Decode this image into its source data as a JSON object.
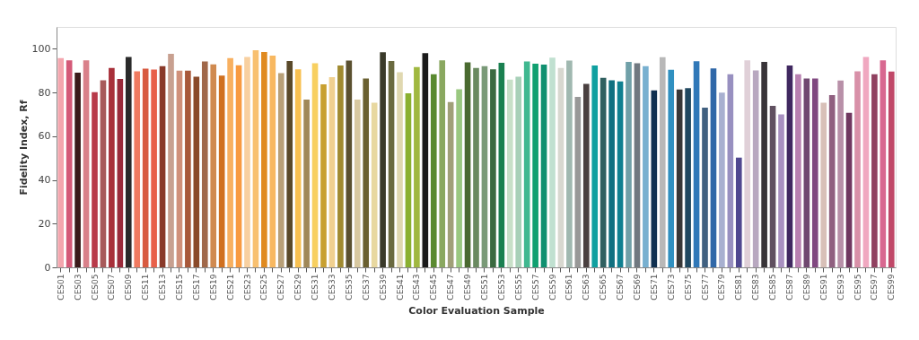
{
  "chart_data": {
    "type": "bar",
    "xlabel": "Color Evaluation Sample",
    "ylabel": "Fidelity Index, Rf",
    "categories": [
      "CES01",
      null,
      "CES03",
      null,
      "CES05",
      null,
      "CES07",
      null,
      "CES09",
      null,
      "CES11",
      null,
      "CES13",
      null,
      "CES15",
      null,
      "CES17",
      null,
      "CES19",
      null,
      "CES21",
      null,
      "CES23",
      null,
      "CES25",
      null,
      "CES27",
      null,
      "CES29",
      null,
      "CES31",
      null,
      "CES33",
      null,
      "CES35",
      null,
      "CES37",
      null,
      "CES39",
      null,
      "CES41",
      null,
      "CES43",
      null,
      "CES45",
      null,
      "CES47",
      null,
      "CES49",
      null,
      "CES51",
      null,
      "CES53",
      null,
      "CES55",
      null,
      "CES57",
      null,
      "CES59",
      null,
      "CES61",
      null,
      "CES63",
      null,
      "CES65",
      null,
      "CES67",
      null,
      "CES69",
      null,
      "CES71",
      null,
      "CES73",
      null,
      "CES75",
      null,
      "CES77",
      null,
      "CES79",
      null,
      "CES81",
      null,
      "CES83",
      null,
      "CES85",
      null,
      "CES87",
      null,
      "CES89",
      null,
      "CES91",
      null,
      "CES93",
      null,
      "CES95",
      null,
      "CES97",
      null,
      "CES99"
    ],
    "values": [
      95.7,
      94.7,
      89.1,
      94.7,
      80.1,
      85.6,
      91.2,
      86.2,
      96.3,
      89.7,
      90.9,
      90.5,
      92,
      97.7,
      90,
      90,
      87.2,
      94.2,
      92.9,
      87.7,
      95.7,
      92.5,
      96.3,
      99.3,
      98.5,
      96.9,
      88.9,
      94.4,
      90.6,
      76.8,
      93.4,
      83.7,
      87,
      92.4,
      94.6,
      76.8,
      86.4,
      75.3,
      98.4,
      94.4,
      89.3,
      79.6,
      91.6,
      98,
      88.3,
      94.7,
      75.6,
      81.5,
      93.8,
      91.2,
      92,
      90.6,
      93.6,
      85.9,
      87.2,
      94.2,
      93.2,
      92.8,
      95.9,
      91.2,
      94.6,
      78,
      83.9,
      92.3,
      86.7,
      85.6,
      85.1,
      94,
      93.4,
      92,
      81,
      96.1,
      90.4,
      81.4,
      82,
      94.3,
      73.1,
      91,
      79.9,
      88.3,
      50.2,
      94.7,
      90.1,
      94,
      73.9,
      70,
      92.3,
      88.3,
      86.4,
      86.4,
      75.3,
      78.8,
      85.5,
      70.7,
      89.7,
      96.3,
      88.3,
      94.7,
      89.6
    ],
    "colors": [
      "#f4a6ae",
      "#d45a78",
      "#3a1a1a",
      "#d9808a",
      "#b83a4a",
      "#a85a5a",
      "#a8303a",
      "#9a2a3a",
      "#2a2a2a",
      "#f07a60",
      "#d85a40",
      "#e8604a",
      "#8a3a2a",
      "#c8a090",
      "#d0907a",
      "#a8583a",
      "#8a4a2a",
      "#a0684a",
      "#d08a50",
      "#d07020",
      "#f8b060",
      "#f89a40",
      "#f8d0a0",
      "#f8c070",
      "#e08a20",
      "#f8b860",
      "#b8a078",
      "#5a4a2a",
      "#f8c050",
      "#a08858",
      "#f8d060",
      "#c8a030",
      "#f0d090",
      "#a08a30",
      "#5a5030",
      "#d8c8a0",
      "#6a6030",
      "#e8d8a0",
      "#3a3a2a",
      "#6a6a40",
      "#e0d8b0",
      "#8ab030",
      "#a0b840",
      "#1a1a1a",
      "#5a8a30",
      "#8aa860",
      "#a0a078",
      "#9ac880",
      "#4a6a30",
      "#6a8a60",
      "#7a9a78",
      "#3a6a40",
      "#1a8050",
      "#c8e0c8",
      "#a8d0b8",
      "#40b890",
      "#10a070",
      "#109070",
      "#c0e0d0",
      "#d8d8d0",
      "#a0b8b0",
      "#989898",
      "#4a4040",
      "#10a0a0",
      "#306060",
      "#107080",
      "#108090",
      "#70a0a8",
      "#707880",
      "#78b0d0",
      "#103050",
      "#b8b8b8",
      "#3090c0",
      "#383838",
      "#204860",
      "#3078b8",
      "#406080",
      "#3068a8",
      "#a8b0d0",
      "#9890c0",
      "#504890",
      "#e0d0d8",
      "#b8a8c0",
      "#383438",
      "#605060",
      "#a890c0",
      "#402860",
      "#b880b0",
      "#704870",
      "#804880",
      "#d8c0b8",
      "#906080",
      "#b890a8",
      "#703860",
      "#d890a8",
      "#f0a8c0",
      "#904060",
      "#d86890",
      "#c04868"
    ],
    "ylim": [
      0,
      110
    ],
    "yticks": [
      0,
      20,
      40,
      60,
      80,
      100
    ],
    "grid": false
  }
}
